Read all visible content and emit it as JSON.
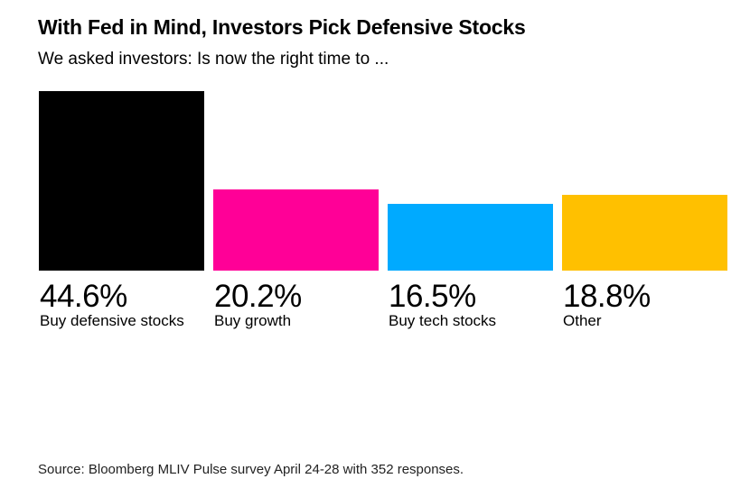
{
  "chart_data": {
    "type": "bar",
    "title": "With Fed in Mind, Investors Pick Defensive Stocks",
    "subtitle": "We asked investors: Is now the right time to ...",
    "categories": [
      "Buy defensive stocks",
      "Buy growth",
      "Buy tech stocks",
      "Other"
    ],
    "values": [
      44.6,
      20.2,
      16.5,
      18.8
    ],
    "value_labels": [
      "44.6%",
      "20.2%",
      "16.5%",
      "18.8%"
    ],
    "colors": [
      "#000000",
      "#ff0097",
      "#00aaff",
      "#ffc000"
    ],
    "unit": "%",
    "ylim": [
      0,
      44.6
    ],
    "grid": false,
    "legend": "none"
  },
  "source": "Source: Bloomberg MLIV Pulse survey April 24-28 with 352 responses."
}
